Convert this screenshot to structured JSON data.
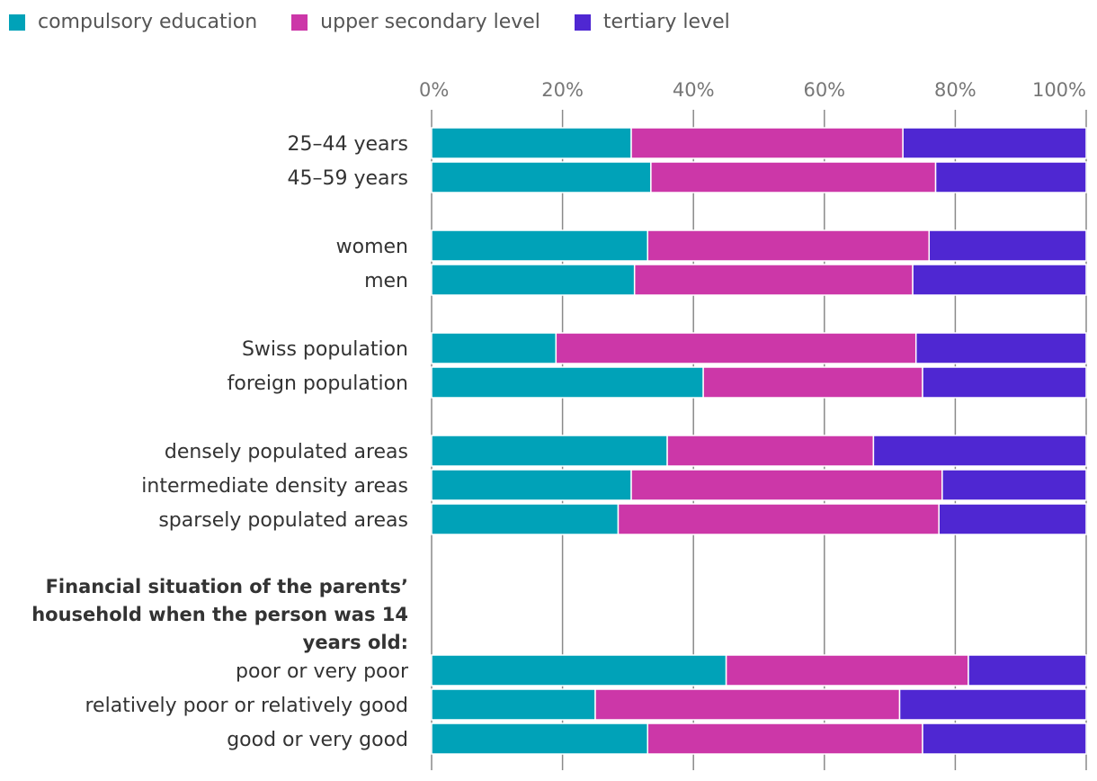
{
  "chart_data": {
    "type": "bar",
    "orientation": "horizontal",
    "stacked": true,
    "xlim": [
      0,
      100
    ],
    "ticks": [
      "0%",
      "20%",
      "40%",
      "60%",
      "80%",
      "100%"
    ],
    "series": [
      {
        "name": "compulsory education",
        "color": "#00a2b8"
      },
      {
        "name": "upper secondary level",
        "color": "#cc37a8"
      },
      {
        "name": "tertiary level",
        "color": "#4f27d2"
      }
    ],
    "section_heading": [
      "Financial situation of the parents’",
      "household when the person was 14",
      "years old:"
    ],
    "groups": [
      {
        "rows": [
          {
            "label": "25–44 years",
            "values": [
              30.5,
              41.5,
              28.0
            ]
          },
          {
            "label": "45–59 years",
            "values": [
              33.5,
              43.5,
              23.0
            ]
          }
        ]
      },
      {
        "rows": [
          {
            "label": "women",
            "values": [
              33.0,
              43.0,
              24.0
            ]
          },
          {
            "label": "men",
            "values": [
              31.0,
              42.5,
              26.5
            ]
          }
        ]
      },
      {
        "rows": [
          {
            "label": "Swiss population",
            "values": [
              19.0,
              55.0,
              26.0
            ]
          },
          {
            "label": "foreign population",
            "values": [
              41.5,
              33.5,
              25.0
            ]
          }
        ]
      },
      {
        "rows": [
          {
            "label": "densely populated areas",
            "values": [
              36.0,
              31.5,
              32.5
            ]
          },
          {
            "label": "intermediate density areas",
            "values": [
              30.5,
              47.5,
              22.0
            ]
          },
          {
            "label": "sparsely populated areas",
            "values": [
              28.5,
              49.0,
              22.5
            ]
          }
        ]
      },
      {
        "rows": [
          {
            "label": "poor or very poor",
            "values": [
              45.0,
              37.0,
              18.0
            ]
          },
          {
            "label": "relatively poor or relatively good",
            "values": [
              25.0,
              46.5,
              28.5
            ]
          },
          {
            "label": "good or very good",
            "values": [
              33.0,
              42.0,
              25.0
            ]
          }
        ]
      }
    ]
  }
}
